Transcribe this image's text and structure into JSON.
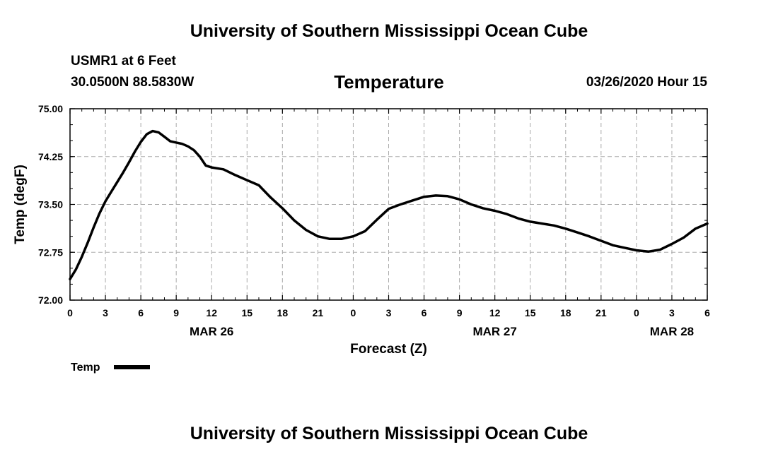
{
  "header": {
    "title": "University of Southern Mississippi Ocean Cube",
    "station": "USMR1 at 6 Feet",
    "coordinates": "30.0500N 88.5830W",
    "parameter": "Temperature",
    "datetime": "03/26/2020 Hour 15"
  },
  "footer": {
    "title": "University of Southern Mississippi Ocean Cube"
  },
  "chart_data": {
    "type": "line",
    "title": "Temperature",
    "xlabel": "Forecast (Z)",
    "ylabel": "Temp (degF)",
    "xlim": [
      0,
      54
    ],
    "ylim": [
      72.0,
      75.0
    ],
    "x_ticks": [
      0,
      3,
      6,
      9,
      12,
      15,
      18,
      21,
      24,
      27,
      30,
      33,
      36,
      39,
      42,
      45,
      48,
      51,
      54
    ],
    "x_tick_labels": [
      "0",
      "3",
      "6",
      "9",
      "12",
      "15",
      "18",
      "21",
      "0",
      "3",
      "6",
      "9",
      "12",
      "15",
      "18",
      "21",
      "0",
      "3",
      "6"
    ],
    "y_ticks": [
      72.0,
      72.75,
      73.5,
      74.25,
      75.0
    ],
    "y_tick_labels": [
      "72.00",
      "72.75",
      "73.50",
      "74.25",
      "75.00"
    ],
    "date_labels": [
      {
        "x": 12,
        "label": "MAR 26"
      },
      {
        "x": 36,
        "label": "MAR 27"
      },
      {
        "x": 51,
        "label": "MAR 28"
      }
    ],
    "grid": true,
    "legend": {
      "position": "bottom-left",
      "entries": [
        "Temp"
      ]
    },
    "series": [
      {
        "name": "Temp",
        "color": "#000000",
        "x": [
          0,
          0.5,
          1,
          1.5,
          2,
          2.5,
          3,
          3.5,
          4,
          4.5,
          5,
          5.5,
          6,
          6.5,
          7,
          7.5,
          8,
          8.5,
          9,
          9.5,
          10,
          10.5,
          11,
          11.5,
          12,
          13,
          14,
          15,
          16,
          17,
          18,
          19,
          20,
          21,
          22,
          23,
          24,
          25,
          26,
          27,
          28,
          29,
          30,
          31,
          32,
          33,
          34,
          35,
          36,
          37,
          38,
          39,
          40,
          41,
          42,
          43,
          44,
          45,
          46,
          47,
          48,
          49,
          50,
          51,
          52,
          53,
          54
        ],
        "values": [
          72.33,
          72.48,
          72.68,
          72.9,
          73.14,
          73.36,
          73.55,
          73.7,
          73.85,
          74.0,
          74.16,
          74.33,
          74.48,
          74.6,
          74.65,
          74.63,
          74.56,
          74.49,
          74.47,
          74.45,
          74.41,
          74.35,
          74.25,
          74.11,
          74.08,
          74.05,
          73.96,
          73.88,
          73.8,
          73.61,
          73.44,
          73.25,
          73.1,
          73.0,
          72.96,
          72.96,
          73.0,
          73.08,
          73.26,
          73.43,
          73.5,
          73.56,
          73.62,
          73.64,
          73.63,
          73.58,
          73.5,
          73.44,
          73.4,
          73.35,
          73.28,
          73.23,
          73.2,
          73.17,
          73.12,
          73.06,
          73.0,
          72.93,
          72.86,
          72.82,
          72.78,
          72.76,
          72.79,
          72.88,
          72.98,
          73.12,
          73.2
        ]
      }
    ]
  }
}
